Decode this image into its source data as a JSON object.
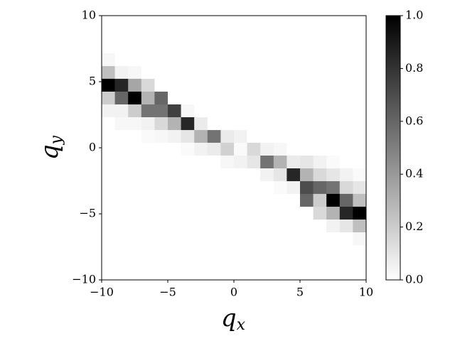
{
  "chart_data": {
    "type": "heatmap",
    "xlabel": {
      "base": "q",
      "sub": "x"
    },
    "ylabel": {
      "base": "q",
      "sub": "y"
    },
    "xbins": [
      -10,
      -9,
      -8,
      -7,
      -6,
      -5,
      -4,
      -3,
      -2,
      -1,
      0,
      1,
      2,
      3,
      4,
      5,
      6,
      7,
      8,
      9,
      10
    ],
    "ybins": [
      7.15,
      6.18,
      5.22,
      4.25,
      3.28,
      2.31,
      1.34,
      0.38,
      -0.59,
      -1.56,
      -2.53,
      -3.49,
      -4.46,
      -5.43,
      -6.4,
      -7.37
    ],
    "values": [
      [
        0.03,
        0,
        0,
        0,
        0,
        0,
        0,
        0,
        0,
        0,
        0,
        0,
        0,
        0,
        0,
        0,
        0,
        0,
        0,
        0
      ],
      [
        0.25,
        0.05,
        0.03,
        0,
        0,
        0,
        0,
        0,
        0,
        0,
        0,
        0,
        0,
        0,
        0,
        0,
        0,
        0,
        0,
        0
      ],
      [
        1.0,
        0.85,
        0.35,
        0.15,
        0,
        0,
        0,
        0,
        0,
        0,
        0,
        0,
        0,
        0,
        0,
        0,
        0,
        0,
        0,
        0
      ],
      [
        0.2,
        0.6,
        1.0,
        0.3,
        0.6,
        0,
        0,
        0,
        0,
        0,
        0,
        0,
        0,
        0,
        0,
        0,
        0,
        0,
        0,
        0
      ],
      [
        0.05,
        0.05,
        0.2,
        0.55,
        0.55,
        0.75,
        0.03,
        0,
        0,
        0,
        0,
        0,
        0,
        0,
        0,
        0,
        0,
        0,
        0,
        0
      ],
      [
        0,
        0.03,
        0.03,
        0.05,
        0.15,
        0.3,
        0.85,
        0.08,
        0,
        0,
        0,
        0,
        0,
        0,
        0,
        0,
        0,
        0,
        0,
        0
      ],
      [
        0,
        0,
        0,
        0.02,
        0.03,
        0.05,
        0.1,
        0.3,
        0.55,
        0.08,
        0.05,
        0,
        0,
        0,
        0,
        0,
        0,
        0,
        0,
        0
      ],
      [
        0,
        0,
        0,
        0,
        0,
        0,
        0.02,
        0.05,
        0.08,
        0.18,
        0.02,
        0.15,
        0.05,
        0.03,
        0,
        0,
        0,
        0,
        0,
        0
      ],
      [
        0,
        0,
        0,
        0,
        0,
        0,
        0,
        0,
        0,
        0.03,
        0.05,
        0.1,
        0.55,
        0.3,
        0.08,
        0.1,
        0.05,
        0.02,
        0,
        0
      ],
      [
        0,
        0,
        0,
        0,
        0,
        0,
        0,
        0,
        0,
        0,
        0,
        0,
        0.05,
        0.1,
        0.85,
        0.3,
        0.15,
        0.1,
        0.05,
        0.02
      ],
      [
        0,
        0,
        0,
        0,
        0,
        0,
        0,
        0,
        0,
        0,
        0,
        0,
        0,
        0.02,
        0.05,
        0.7,
        0.6,
        0.55,
        0.15,
        0.1
      ],
      [
        0,
        0,
        0,
        0,
        0,
        0,
        0,
        0,
        0,
        0,
        0,
        0,
        0,
        0,
        0,
        0.6,
        0.2,
        1.0,
        0.6,
        0.25
      ],
      [
        0,
        0,
        0,
        0,
        0,
        0,
        0,
        0,
        0,
        0,
        0,
        0,
        0,
        0,
        0,
        0,
        0.15,
        0.3,
        0.85,
        1.0
      ],
      [
        0,
        0,
        0,
        0,
        0,
        0,
        0,
        0,
        0,
        0,
        0,
        0,
        0,
        0,
        0,
        0,
        0,
        0.05,
        0.1,
        0.25
      ],
      [
        0,
        0,
        0,
        0,
        0,
        0,
        0,
        0,
        0,
        0,
        0,
        0,
        0,
        0,
        0,
        0,
        0,
        0,
        0,
        0.03
      ]
    ],
    "xlim": [
      -10,
      10
    ],
    "ylim": [
      -10,
      10
    ],
    "xticks": [
      {
        "value": -10,
        "label": "−10"
      },
      {
        "value": -5,
        "label": "−5"
      },
      0,
      5,
      10
    ],
    "yticks": [
      {
        "value": -10,
        "label": "−10"
      },
      {
        "value": -5,
        "label": "−5"
      },
      0,
      5,
      10
    ],
    "clim": [
      0,
      1.0
    ],
    "cticks": [
      {
        "value": 0,
        "label": "0.0"
      },
      0.2,
      0.4,
      0.6,
      0.8,
      {
        "value": 1,
        "label": "1.0"
      }
    ],
    "colormap": [
      "#ffffff",
      "#000000"
    ]
  }
}
